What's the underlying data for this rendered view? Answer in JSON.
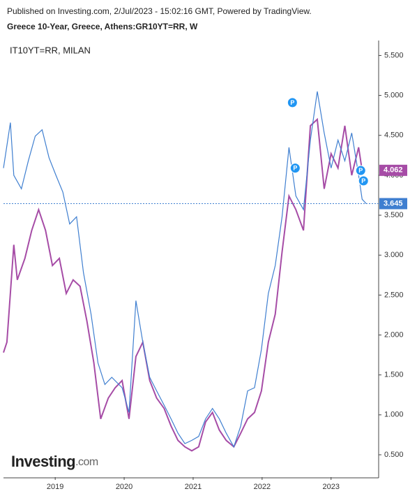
{
  "header": {
    "line1": "Published on Investing.com, 2/Jul/2023 - 15:02:16 GMT, Powered by TradingView.",
    "line2": "Greece 10-Year, Greece, Athens:GR10YT=RR, W"
  },
  "logo": {
    "name": "Investing",
    "suffix": ".com"
  },
  "chart_data": {
    "type": "line",
    "annotation": "IT10YT=RR, MILAN",
    "xlim": [
      2018.25,
      2023.69
    ],
    "xticks": [
      2019,
      2020,
      2021,
      2022,
      2023
    ],
    "ylim": [
      0.22,
      5.67
    ],
    "yticks": [
      {
        "value": 0.5,
        "label": "0.500"
      },
      {
        "value": 1,
        "label": "1.000"
      },
      {
        "value": 1.5,
        "label": "1.500"
      },
      {
        "value": 2,
        "label": "2.000"
      },
      {
        "value": 2.5,
        "label": "2.500"
      },
      {
        "value": 3,
        "label": "3.000"
      },
      {
        "value": 3.5,
        "label": "3.500"
      },
      {
        "value": 4,
        "label": "4.000"
      },
      {
        "value": 4.5,
        "label": "4.500"
      },
      {
        "value": 5,
        "label": "5.000"
      },
      {
        "value": 5.5,
        "label": "5.500"
      }
    ],
    "series": [
      {
        "color": "#a64ca6",
        "x": [
          2018.25,
          2018.3,
          2018.4,
          2018.45,
          2018.56,
          2018.66,
          2018.76,
          2018.86,
          2018.96,
          2019.06,
          2019.16,
          2019.26,
          2019.36,
          2019.46,
          2019.56,
          2019.66,
          2019.77,
          2019.87,
          2019.97,
          2020.07,
          2020.17,
          2020.27,
          2020.37,
          2020.47,
          2020.58,
          2020.68,
          2020.78,
          2020.88,
          2020.98,
          2021.08,
          2021.18,
          2021.28,
          2021.38,
          2021.48,
          2021.59,
          2021.69,
          2021.79,
          2021.89,
          2021.99,
          2022.09,
          2022.19,
          2022.29,
          2022.39,
          2022.49,
          2022.6,
          2022.7,
          2022.8,
          2022.9,
          2023.0,
          2023.1,
          2023.2,
          2023.3,
          2023.4,
          2023.45
        ],
        "values": [
          1.78,
          1.91,
          3.13,
          2.69,
          2.96,
          3.31,
          3.57,
          3.31,
          2.87,
          2.96,
          2.52,
          2.69,
          2.61,
          2.17,
          1.65,
          0.95,
          1.21,
          1.34,
          1.43,
          0.95,
          1.73,
          1.91,
          1.43,
          1.21,
          1.08,
          0.86,
          0.68,
          0.6,
          0.55,
          0.6,
          0.91,
          1.03,
          0.81,
          0.68,
          0.6,
          0.77,
          0.95,
          1.03,
          1.3,
          1.91,
          2.26,
          3.04,
          3.74,
          3.57,
          3.31,
          4.62,
          4.7,
          3.83,
          4.27,
          4.09,
          4.62,
          4.0,
          4.35,
          4.06
        ],
        "last_value": {
          "value": 4.062,
          "label": "4.062"
        },
        "price_line": false
      },
      {
        "color": "#3f7fd0",
        "x": [
          2018.25,
          2018.35,
          2018.4,
          2018.51,
          2018.61,
          2018.71,
          2018.81,
          2018.91,
          2019.01,
          2019.11,
          2019.21,
          2019.31,
          2019.41,
          2019.52,
          2019.62,
          2019.72,
          2019.82,
          2019.97,
          2020.07,
          2020.17,
          2020.27,
          2020.37,
          2020.47,
          2020.58,
          2020.68,
          2020.78,
          2020.88,
          2020.98,
          2021.08,
          2021.18,
          2021.28,
          2021.38,
          2021.48,
          2021.59,
          2021.69,
          2021.79,
          2021.89,
          2021.99,
          2022.09,
          2022.19,
          2022.29,
          2022.39,
          2022.49,
          2022.6,
          2022.7,
          2022.8,
          2022.9,
          2023.0,
          2023.1,
          2023.2,
          2023.3,
          2023.4,
          2023.45,
          2023.51
        ],
        "values": [
          4.09,
          4.66,
          4.0,
          3.83,
          4.18,
          4.49,
          4.57,
          4.22,
          4.0,
          3.79,
          3.39,
          3.48,
          2.78,
          2.26,
          1.65,
          1.38,
          1.47,
          1.34,
          1.03,
          2.43,
          1.91,
          1.47,
          1.3,
          1.12,
          0.95,
          0.77,
          0.64,
          0.68,
          0.73,
          0.95,
          1.08,
          0.95,
          0.77,
          0.6,
          0.86,
          1.3,
          1.34,
          1.82,
          2.52,
          2.87,
          3.48,
          4.35,
          3.74,
          3.57,
          4.44,
          5.05,
          4.53,
          4.09,
          4.44,
          4.18,
          4.53,
          4.0,
          3.7,
          3.645
        ],
        "last_value": {
          "value": 3.645,
          "label": "3.645"
        },
        "price_line": true
      }
    ],
    "markers": [
      {
        "x": 2022.44,
        "y": 4.91,
        "label": "P"
      },
      {
        "x": 2022.48,
        "y": 4.09,
        "label": "P"
      },
      {
        "x": 2023.43,
        "y": 4.06,
        "label": "P"
      },
      {
        "x": 2023.47,
        "y": 3.93,
        "label": "P"
      }
    ]
  }
}
